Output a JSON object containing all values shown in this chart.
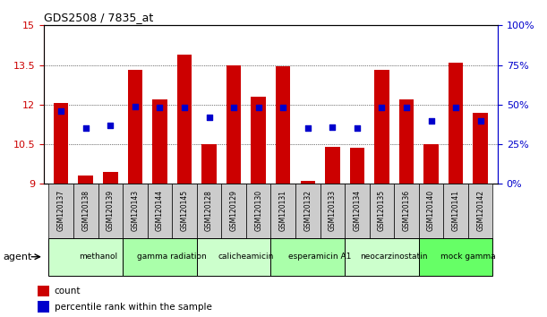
{
  "title": "GDS2508 / 7835_at",
  "samples": [
    "GSM120137",
    "GSM120138",
    "GSM120139",
    "GSM120143",
    "GSM120144",
    "GSM120145",
    "GSM120128",
    "GSM120129",
    "GSM120130",
    "GSM120131",
    "GSM120132",
    "GSM120133",
    "GSM120134",
    "GSM120135",
    "GSM120136",
    "GSM120140",
    "GSM120141",
    "GSM120142"
  ],
  "count_values": [
    12.05,
    9.3,
    9.45,
    13.3,
    12.2,
    13.9,
    10.5,
    13.5,
    12.3,
    13.45,
    9.1,
    10.4,
    10.35,
    13.3,
    12.2,
    10.5,
    13.6,
    11.7
  ],
  "percentile_values": [
    46,
    35,
    37,
    49,
    48,
    48,
    42,
    48,
    48,
    48,
    35,
    36,
    35,
    48,
    48,
    40,
    48,
    40
  ],
  "ymin": 9,
  "ymax": 15,
  "y2min": 0,
  "y2max": 100,
  "yticks": [
    9,
    10.5,
    12,
    13.5,
    15
  ],
  "y2ticks": [
    0,
    25,
    50,
    75,
    100
  ],
  "y2ticklabels": [
    "0%",
    "25%",
    "50%",
    "75%",
    "100%"
  ],
  "agents": [
    {
      "label": "methanol",
      "start": 0,
      "end": 3,
      "color": "#ccffcc"
    },
    {
      "label": "gamma radiation",
      "start": 3,
      "end": 6,
      "color": "#aaffaa"
    },
    {
      "label": "calicheamicin",
      "start": 6,
      "end": 9,
      "color": "#ccffcc"
    },
    {
      "label": "esperamicin A1",
      "start": 9,
      "end": 12,
      "color": "#aaffaa"
    },
    {
      "label": "neocarzinostatin",
      "start": 12,
      "end": 15,
      "color": "#ccffcc"
    },
    {
      "label": "mock gamma",
      "start": 15,
      "end": 18,
      "color": "#66ff66"
    }
  ],
  "bar_color": "#cc0000",
  "dot_color": "#0000cc",
  "bar_width": 0.6,
  "count_label": "count",
  "percentile_label": "percentile rank within the sample",
  "agent_label": "agent",
  "grid_color": "#000000",
  "axis_color_left": "#cc0000",
  "axis_color_right": "#0000cc",
  "tick_bg_color": "#cccccc"
}
